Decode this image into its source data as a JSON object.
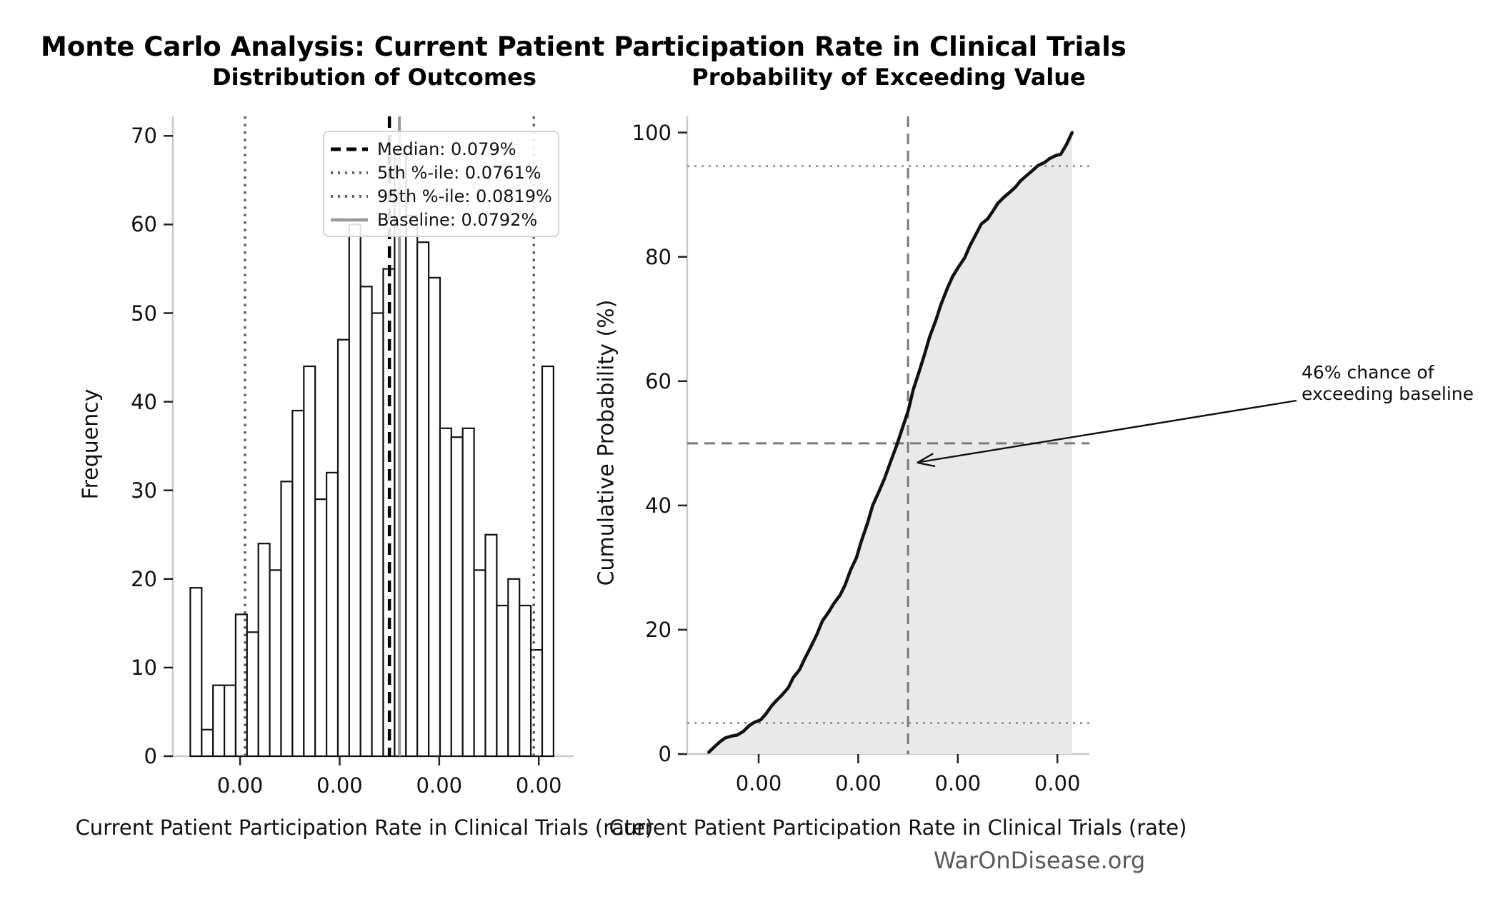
{
  "suptitle": "Monte Carlo Analysis: Current Patient Participation Rate in Clinical Trials",
  "watermark": "WarOnDisease.org",
  "annotation": {
    "line1": "46% chance of",
    "line2": "exceeding baseline",
    "full_text": "46% chance of exceeding baseline"
  },
  "colors": {
    "bar_fill": "#ffffff",
    "bar_edge": "#111111",
    "median_line": "#000000",
    "percentile_line": "#606060",
    "baseline_line": "#999999",
    "cdf_line": "#111111",
    "cdf_fill": "#e9e9e9",
    "ref_dashed": "#7a7a7a",
    "ref_dotted": "#9a9a9a",
    "spine": "#c9c9c9",
    "tick_mark": "#222222",
    "watermark_text": "#595959"
  },
  "left_chart": {
    "title": "Distribution of Outcomes",
    "legend": [
      {
        "label": "Median: 0.079%",
        "style": "dashed",
        "color": "#000000"
      },
      {
        "label": "5th %-ile: 0.0761%",
        "style": "dotted",
        "color": "#606060"
      },
      {
        "label": "95th %-ile: 0.0819%",
        "style": "dotted",
        "color": "#606060"
      },
      {
        "label": "Baseline: 0.0792%",
        "style": "solid",
        "color": "#999999"
      }
    ]
  },
  "right_chart": {
    "title": "Probability of Exceeding Value"
  },
  "chart_data": [
    {
      "type": "bar",
      "subtype": "histogram",
      "title": "Distribution of Outcomes",
      "xlabel": "Current Patient Participation Rate in Clinical Trials (rate)",
      "ylabel": "Frequency",
      "bin_start": 0.00075,
      "bin_width": 2.28e-06,
      "frequencies": [
        19,
        3,
        8,
        8,
        16,
        14,
        24,
        21,
        31,
        39,
        44,
        29,
        32,
        47,
        60,
        53,
        50,
        55,
        68,
        61,
        58,
        54,
        37,
        36,
        37,
        21,
        25,
        17,
        20,
        17,
        12,
        44
      ],
      "x_tick_values": [
        0.00076,
        0.00078,
        0.0008,
        0.00082
      ],
      "x_tick_label": "0.00",
      "y_ticks": [
        0,
        10,
        20,
        30,
        40,
        50,
        60,
        70
      ],
      "xlim": [
        0.0007465,
        0.000827
      ],
      "ylim": [
        0,
        72.2
      ],
      "grid": false,
      "legend_position": "upper right",
      "median": {
        "value": 0.00079,
        "label": "Median: 0.079%"
      },
      "p5": {
        "value": 0.000761,
        "label": "5th %-ile: 0.0761%"
      },
      "p95": {
        "value": 0.000819,
        "label": "95th %-ile: 0.0819%"
      },
      "baseline": {
        "value": 0.000792,
        "label": "Baseline: 0.0792%"
      }
    },
    {
      "type": "line",
      "subtype": "cdf",
      "title": "Probability of Exceeding Value",
      "xlabel": "Current Patient Participation Rate in Clinical Trials (rate)",
      "ylabel": "Cumulative Probability (%)",
      "x": [
        0.00075,
        0.00075228,
        0.00075456,
        0.00075684,
        0.00075912,
        0.0007614,
        0.00076368,
        0.00076596,
        0.00076824,
        0.00077052,
        0.0007728,
        0.00077508,
        0.00077736,
        0.00077964,
        0.00078192,
        0.0007842,
        0.00078648,
        0.00078876,
        0.00079104,
        0.00079332,
        0.0007956,
        0.00079788,
        0.00080016,
        0.00080244,
        0.00080472,
        0.000807,
        0.00080928,
        0.00081156,
        0.00081384,
        0.00081612,
        0.0008184,
        0.00082068,
        0.00082296
      ],
      "y": [
        0.3,
        2.0,
        2.9,
        3.6,
        5.1,
        6.4,
        8.7,
        10.7,
        13.6,
        17.3,
        21.4,
        24.2,
        27.2,
        31.6,
        37.3,
        42.3,
        47.0,
        52.2,
        58.6,
        64.3,
        69.8,
        74.9,
        78.4,
        81.8,
        85.3,
        87.3,
        89.6,
        91.2,
        93.1,
        94.7,
        95.8,
        96.5,
        100.0
      ],
      "x_tick_values": [
        0.00076,
        0.00078,
        0.0008,
        0.00082
      ],
      "x_tick_label": "0.00",
      "y_ticks": [
        0,
        20,
        40,
        60,
        80,
        100
      ],
      "xlim": [
        0.00074565,
        0.00082643
      ],
      "ylim": [
        0,
        102.6
      ],
      "grid": false,
      "shaded_area": true,
      "ref_lines": {
        "h_dashed_50": 50,
        "h_dotted_low": 5,
        "h_dotted_high": 94.6,
        "v_dashed_median": 0.00079
      }
    }
  ]
}
